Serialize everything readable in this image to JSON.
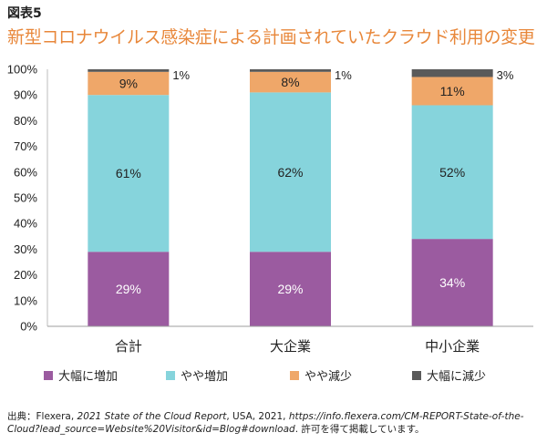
{
  "figure_label": "図表5",
  "title": "新型コロナウイルス感染症による計画されていたクラウド利用の変更",
  "chart_data": {
    "type": "bar",
    "stacked": true,
    "categories": [
      "合計",
      "大企業",
      "中小企業"
    ],
    "series": [
      {
        "name": "大幅に増加",
        "color": "#9b5ba0",
        "values": [
          29,
          29,
          34
        ],
        "labels": [
          "29%",
          "29%",
          "34%"
        ],
        "label_color": "#ffffff"
      },
      {
        "name": "やや増加",
        "color": "#86d4dc",
        "values": [
          61,
          62,
          52
        ],
        "labels": [
          "61%",
          "62%",
          "52%"
        ],
        "label_color": "#222222"
      },
      {
        "name": "やや減少",
        "color": "#efa769",
        "values": [
          9,
          8,
          11
        ],
        "labels": [
          "9%",
          "8%",
          "11%"
        ],
        "label_color": "#222222"
      },
      {
        "name": "大幅に減少",
        "color": "#5a5a5a",
        "values": [
          1,
          1,
          3
        ],
        "labels": [
          "1%",
          "1%",
          "3%"
        ],
        "label_color": "#222222"
      }
    ],
    "yticks": [
      "0%",
      "10%",
      "20%",
      "30%",
      "40%",
      "50%",
      "60%",
      "70%",
      "80%",
      "90%",
      "100%"
    ],
    "ylim": [
      0,
      100
    ],
    "xlabel": "",
    "ylabel": "",
    "legend": "bottom",
    "grid": false
  },
  "source": {
    "prefix": "出典：Flexera, ",
    "title_italic": "2021 State of the Cloud Report",
    "mid": ", USA, 2021, ",
    "url_italic": "https://info.flexera.com/CM-REPORT-State-of-the-Cloud?lead_source=Website%20Visitor&id=Blog#download",
    "suffix": ". 許可を得て掲載しています。"
  }
}
